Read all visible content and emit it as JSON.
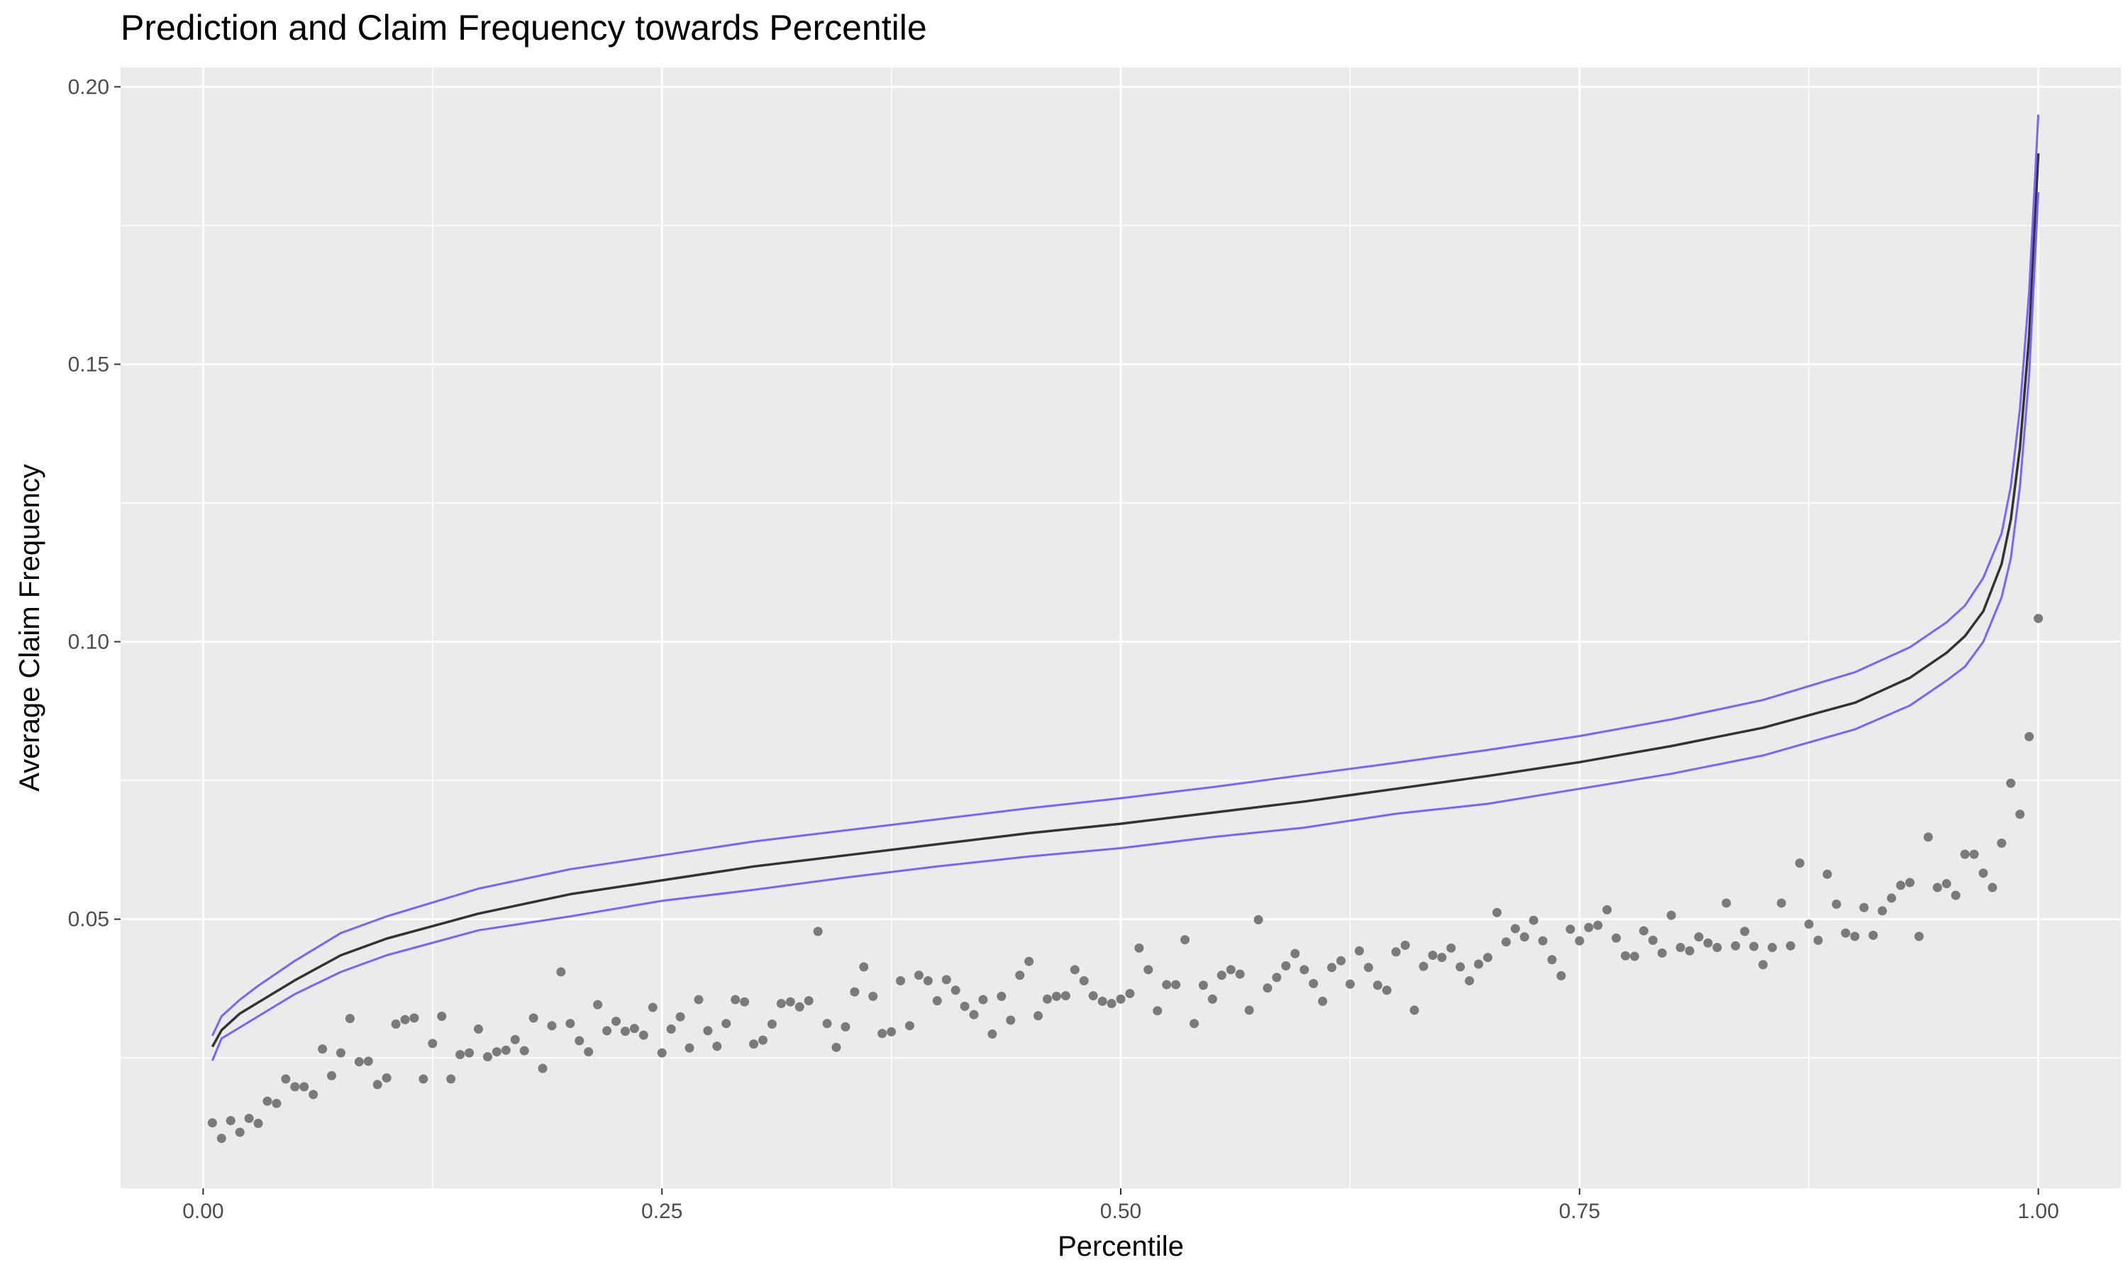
{
  "chart_data": {
    "type": "line",
    "title": "Prediction and Claim Frequency towards Percentile",
    "xlabel": "Percentile",
    "ylabel": "Average Claim Frequency",
    "xlim": [
      -0.045,
      1.045
    ],
    "ylim": [
      0.0015,
      0.2035
    ],
    "x_ticks": [
      0.0,
      0.25,
      0.5,
      0.75,
      1.0
    ],
    "x_tick_labels": [
      "0.00",
      "0.25",
      "0.50",
      "0.75",
      "1.00"
    ],
    "x_minor_ticks": [
      0.125,
      0.375,
      0.625,
      0.875
    ],
    "y_ticks": [
      0.05,
      0.1,
      0.15,
      0.2
    ],
    "y_tick_labels": [
      "0.05",
      "0.10",
      "0.15",
      "0.20"
    ],
    "y_minor_ticks": [
      0.025,
      0.075,
      0.125,
      0.175
    ],
    "grid": true,
    "legend": "none",
    "colors": {
      "panel_background": "#ebebeb",
      "grid_line": "#ffffff",
      "prediction_line": "#333333",
      "bound_lines": "#7b61ff",
      "observed_points": "#7a7a7a"
    },
    "series": [
      {
        "role": "prediction",
        "x": [
          0.005,
          0.01,
          0.02,
          0.03,
          0.05,
          0.075,
          0.1,
          0.15,
          0.2,
          0.25,
          0.3,
          0.35,
          0.4,
          0.45,
          0.5,
          0.55,
          0.6,
          0.65,
          0.7,
          0.75,
          0.8,
          0.85,
          0.9,
          0.93,
          0.95,
          0.96,
          0.97,
          0.98,
          0.985,
          0.99,
          0.995,
          1.0
        ],
        "y": [
          0.027,
          0.03,
          0.033,
          0.035,
          0.039,
          0.0435,
          0.0465,
          0.051,
          0.0545,
          0.057,
          0.0595,
          0.0615,
          0.0635,
          0.0655,
          0.0672,
          0.0692,
          0.0712,
          0.0735,
          0.0758,
          0.0783,
          0.0812,
          0.0845,
          0.089,
          0.0935,
          0.098,
          0.101,
          0.1055,
          0.114,
          0.122,
          0.135,
          0.155,
          0.188
        ]
      },
      {
        "role": "upper-bound",
        "x": [
          0.005,
          0.01,
          0.02,
          0.03,
          0.05,
          0.075,
          0.1,
          0.15,
          0.2,
          0.25,
          0.3,
          0.35,
          0.4,
          0.45,
          0.5,
          0.55,
          0.6,
          0.65,
          0.7,
          0.75,
          0.8,
          0.85,
          0.9,
          0.93,
          0.95,
          0.96,
          0.97,
          0.98,
          0.985,
          0.99,
          0.995,
          1.0
        ],
        "y": [
          0.029,
          0.0325,
          0.0355,
          0.038,
          0.0425,
          0.0475,
          0.0505,
          0.0555,
          0.059,
          0.0615,
          0.064,
          0.066,
          0.068,
          0.07,
          0.0718,
          0.0738,
          0.076,
          0.0782,
          0.0805,
          0.083,
          0.086,
          0.0895,
          0.0945,
          0.099,
          0.1035,
          0.1065,
          0.1115,
          0.1195,
          0.128,
          0.142,
          0.163,
          0.195
        ]
      },
      {
        "role": "lower-bound",
        "x": [
          0.005,
          0.01,
          0.02,
          0.03,
          0.05,
          0.075,
          0.1,
          0.15,
          0.2,
          0.25,
          0.3,
          0.35,
          0.4,
          0.45,
          0.5,
          0.55,
          0.6,
          0.65,
          0.7,
          0.75,
          0.8,
          0.85,
          0.9,
          0.93,
          0.95,
          0.96,
          0.97,
          0.98,
          0.985,
          0.99,
          0.995,
          1.0
        ],
        "y": [
          0.0245,
          0.0285,
          0.0305,
          0.0325,
          0.0365,
          0.0405,
          0.0435,
          0.048,
          0.0505,
          0.0533,
          0.0553,
          0.0575,
          0.0595,
          0.0613,
          0.0628,
          0.0648,
          0.0665,
          0.069,
          0.0708,
          0.0735,
          0.0762,
          0.0795,
          0.0842,
          0.0885,
          0.093,
          0.0955,
          0.1,
          0.108,
          0.115,
          0.128,
          0.148,
          0.181
        ]
      },
      {
        "role": "observed",
        "x": [
          0.005,
          0.01,
          0.015,
          0.02,
          0.025,
          0.03,
          0.035,
          0.04,
          0.045,
          0.05,
          0.055,
          0.06,
          0.065,
          0.07,
          0.075,
          0.08,
          0.085,
          0.09,
          0.095,
          0.1,
          0.105,
          0.11,
          0.115,
          0.12,
          0.125,
          0.13,
          0.135,
          0.14,
          0.145,
          0.15,
          0.155,
          0.16,
          0.165,
          0.17,
          0.175,
          0.18,
          0.185,
          0.19,
          0.195,
          0.2,
          0.205,
          0.21,
          0.215,
          0.22,
          0.225,
          0.23,
          0.235,
          0.24,
          0.245,
          0.25,
          0.255,
          0.26,
          0.265,
          0.27,
          0.275,
          0.28,
          0.285,
          0.29,
          0.295,
          0.3,
          0.305,
          0.31,
          0.315,
          0.32,
          0.325,
          0.33,
          0.335,
          0.34,
          0.345,
          0.35,
          0.355,
          0.36,
          0.365,
          0.37,
          0.375,
          0.38,
          0.385,
          0.39,
          0.395,
          0.4,
          0.405,
          0.41,
          0.415,
          0.42,
          0.425,
          0.43,
          0.435,
          0.44,
          0.445,
          0.45,
          0.455,
          0.46,
          0.465,
          0.47,
          0.475,
          0.48,
          0.485,
          0.49,
          0.495,
          0.5,
          0.505,
          0.51,
          0.515,
          0.52,
          0.525,
          0.53,
          0.535,
          0.54,
          0.545,
          0.55,
          0.555,
          0.56,
          0.565,
          0.57,
          0.575,
          0.58,
          0.585,
          0.59,
          0.595,
          0.6,
          0.605,
          0.61,
          0.615,
          0.62,
          0.625,
          0.63,
          0.635,
          0.64,
          0.645,
          0.65,
          0.655,
          0.66,
          0.665,
          0.67,
          0.675,
          0.68,
          0.685,
          0.69,
          0.695,
          0.7,
          0.705,
          0.71,
          0.715,
          0.72,
          0.725,
          0.73,
          0.735,
          0.74,
          0.745,
          0.75,
          0.755,
          0.76,
          0.765,
          0.77,
          0.775,
          0.78,
          0.785,
          0.79,
          0.795,
          0.8,
          0.805,
          0.81,
          0.815,
          0.82,
          0.825,
          0.83,
          0.835,
          0.84,
          0.845,
          0.85,
          0.855,
          0.86,
          0.865,
          0.87,
          0.875,
          0.88,
          0.885,
          0.89,
          0.895,
          0.9,
          0.905,
          0.91,
          0.915,
          0.92,
          0.925,
          0.93,
          0.935,
          0.94,
          0.945,
          0.95,
          0.955,
          0.96,
          0.965,
          0.97,
          0.975,
          0.98,
          0.985,
          0.99,
          0.995,
          1.0
        ],
        "y": [
          0.0133,
          0.0105,
          0.0137,
          0.0116,
          0.0141,
          0.0132,
          0.0172,
          0.0168,
          0.0212,
          0.0198,
          0.0198,
          0.0184,
          0.0266,
          0.0218,
          0.0259,
          0.0321,
          0.0243,
          0.0244,
          0.0202,
          0.0214,
          0.0311,
          0.0319,
          0.0322,
          0.0212,
          0.0276,
          0.0325,
          0.0212,
          0.0256,
          0.0259,
          0.0302,
          0.0252,
          0.0261,
          0.0264,
          0.0283,
          0.0263,
          0.0322,
          0.0231,
          0.0308,
          0.0405,
          0.0312,
          0.0281,
          0.0261,
          0.0346,
          0.0299,
          0.0316,
          0.0298,
          0.0303,
          0.0291,
          0.0341,
          0.0259,
          0.0302,
          0.0324,
          0.0268,
          0.0355,
          0.0299,
          0.0271,
          0.0312,
          0.0355,
          0.0351,
          0.0275,
          0.0282,
          0.0311,
          0.0348,
          0.0351,
          0.0342,
          0.0353,
          0.0478,
          0.0312,
          0.0269,
          0.0306,
          0.0369,
          0.0414,
          0.0361,
          0.0294,
          0.0297,
          0.0389,
          0.0308,
          0.0399,
          0.0389,
          0.0353,
          0.0391,
          0.0372,
          0.0343,
          0.0328,
          0.0355,
          0.0293,
          0.0361,
          0.0318,
          0.0399,
          0.0424,
          0.0326,
          0.0356,
          0.0361,
          0.0362,
          0.0409,
          0.0389,
          0.0362,
          0.0352,
          0.0348,
          0.0356,
          0.0366,
          0.0448,
          0.0409,
          0.0335,
          0.0382,
          0.0382,
          0.0463,
          0.0312,
          0.0381,
          0.0356,
          0.0399,
          0.0409,
          0.0401,
          0.0336,
          0.0499,
          0.0376,
          0.0395,
          0.0416,
          0.0438,
          0.0409,
          0.0384,
          0.0352,
          0.0413,
          0.0425,
          0.0383,
          0.0443,
          0.0413,
          0.0381,
          0.0372,
          0.0441,
          0.0453,
          0.0336,
          0.0415,
          0.0435,
          0.0431,
          0.0448,
          0.0414,
          0.0389,
          0.0419,
          0.0431,
          0.0512,
          0.0459,
          0.0483,
          0.0468,
          0.0498,
          0.0461,
          0.0427,
          0.0398,
          0.0482,
          0.0461,
          0.0485,
          0.0489,
          0.0517,
          0.0466,
          0.0434,
          0.0433,
          0.0479,
          0.0462,
          0.0439,
          0.0507,
          0.0449,
          0.0443,
          0.0468,
          0.0457,
          0.0449,
          0.0529,
          0.0452,
          0.0478,
          0.0451,
          0.0418,
          0.0449,
          0.0529,
          0.0452,
          0.0601,
          0.0491,
          0.0462,
          0.0581,
          0.0527,
          0.0475,
          0.0469,
          0.0521,
          0.0471,
          0.0515,
          0.0538,
          0.0561,
          0.0566,
          0.0469,
          0.0648,
          0.0557,
          0.0564,
          0.0543,
          0.0617,
          0.0617,
          0.0583,
          0.0557,
          0.0637,
          0.0745,
          0.0689,
          0.0829,
          0.1042
        ]
      }
    ]
  }
}
